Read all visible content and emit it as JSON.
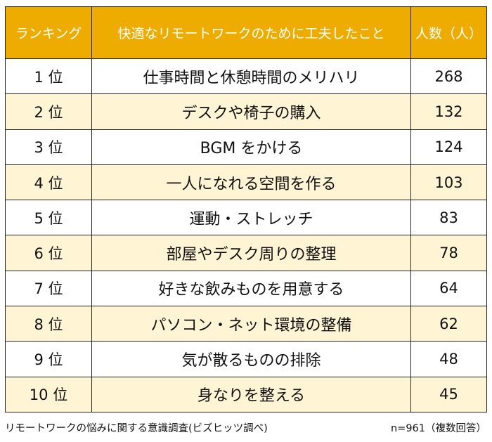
{
  "chart_data": {
    "type": "table",
    "columns": [
      "ランキング",
      "快適なリモートワークのためにに工夫したこと",
      "人数（人）"
    ],
    "rows": [
      {
        "rank": "1 位",
        "item": "仕事時間と休憩時間のメリハリ",
        "count": 268
      },
      {
        "rank": "2 位",
        "item": "デスクや椅子の購入",
        "count": 132
      },
      {
        "rank": "3 位",
        "item": "BGM をかける",
        "count": 124
      },
      {
        "rank": "4 位",
        "item": "一人になれる空間を作る",
        "count": 103
      },
      {
        "rank": "5 位",
        "item": "運動・ストレッチ",
        "count": 83
      },
      {
        "rank": "6 位",
        "item": "部屋やデスク周りの整理",
        "count": 78
      },
      {
        "rank": "7 位",
        "item": "好きな飲みものを用意する",
        "count": 64
      },
      {
        "rank": "8 位",
        "item": "パソコン・ネット環境の整備",
        "count": 62
      },
      {
        "rank": "9 位",
        "item": "気が散るものの排除",
        "count": 48
      },
      {
        "rank": "10 位",
        "item": "身なりを整える",
        "count": 45
      }
    ],
    "colors": {
      "header": "#EFAC00",
      "alt_row": "#FFF4D4"
    }
  },
  "footer": {
    "source": "リモートワークの悩みに関する意識調査(ビズヒッツ調べ)",
    "sample": "n=961（複数回答）"
  }
}
